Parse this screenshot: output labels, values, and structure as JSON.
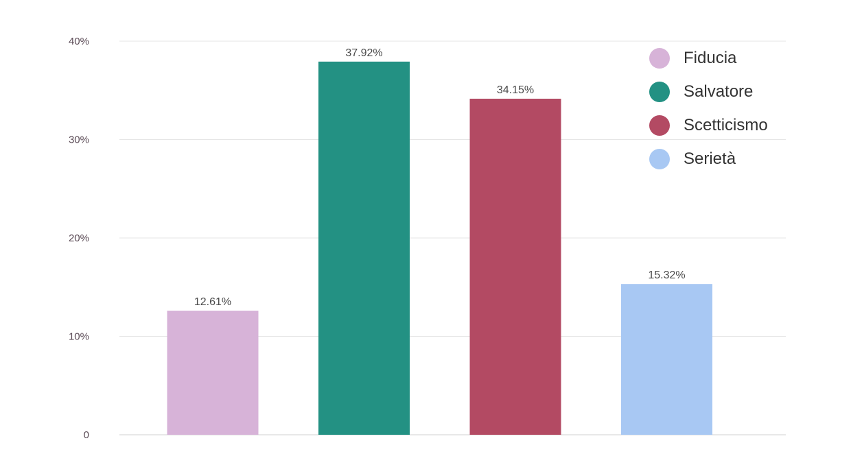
{
  "chart_data": {
    "type": "bar",
    "categories": [
      "Fiducia",
      "Salvatore",
      "Scetticismo",
      "Serietà"
    ],
    "values": [
      12.61,
      37.92,
      34.15,
      15.32
    ],
    "value_labels": [
      "12.61%",
      "37.92%",
      "34.15%",
      "15.32%"
    ],
    "colors": [
      "#d7b3d8",
      "#239183",
      "#b34a63",
      "#a8c8f3"
    ],
    "ylim": [
      0,
      40
    ],
    "yticks": [
      0,
      10,
      20,
      30,
      40
    ],
    "ytick_labels": [
      "0",
      "10%",
      "20%",
      "30%",
      "40%"
    ],
    "grid": true,
    "legend_position": "top-right",
    "title": "",
    "xlabel": "",
    "ylabel": ""
  },
  "legend": {
    "items": [
      {
        "label": "Fiducia",
        "color": "#d7b3d8"
      },
      {
        "label": "Salvatore",
        "color": "#239183"
      },
      {
        "label": "Scetticismo",
        "color": "#b34a63"
      },
      {
        "label": "Serietà",
        "color": "#a8c8f3"
      }
    ]
  }
}
